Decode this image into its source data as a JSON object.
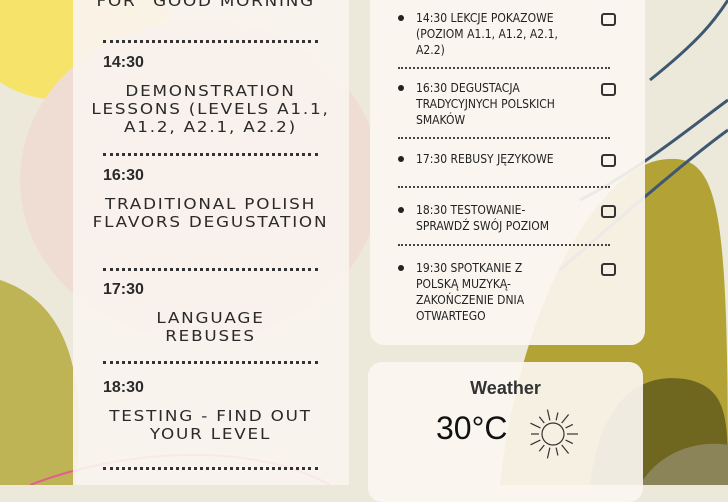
{
  "schedule_en": {
    "top_fragment": "for \"good morning\"",
    "slots": [
      {
        "time": "14:30",
        "title": "Demonstration lessons (levels A1.1, A1.2, A2.1, A2.2)"
      },
      {
        "time": "16:30",
        "title": "Traditional Polish flavors degustation"
      },
      {
        "time": "17:30",
        "title": "Language rebuses"
      },
      {
        "time": "18:30",
        "title": "Testing - find out your level"
      }
    ]
  },
  "checklist": {
    "items": [
      {
        "text": "14:30 Lekcje pokazowe (poziom A1.1, A1.2, A2.1, A2.2)",
        "checked": false
      },
      {
        "text": "16:30 Degustacja tradycyjnych polskich smaków",
        "checked": false
      },
      {
        "text": "17:30 Rebusy językowe",
        "checked": false
      },
      {
        "text": "18:30 Testowanie- sprawdź swój poziom",
        "checked": false
      },
      {
        "text": "19:30 Spotkanie z polską muzyką- zakończenie dnia otwartego",
        "checked": false
      }
    ]
  },
  "weather": {
    "title": "Weather",
    "temperature": "30°C",
    "icon": "sun-icon"
  },
  "colors": {
    "olive": "#b3a336",
    "dark_olive": "#6f6620",
    "yellow": "#f6e46a",
    "navy_line": "#3f5872",
    "pink_line": "#e0608a"
  }
}
